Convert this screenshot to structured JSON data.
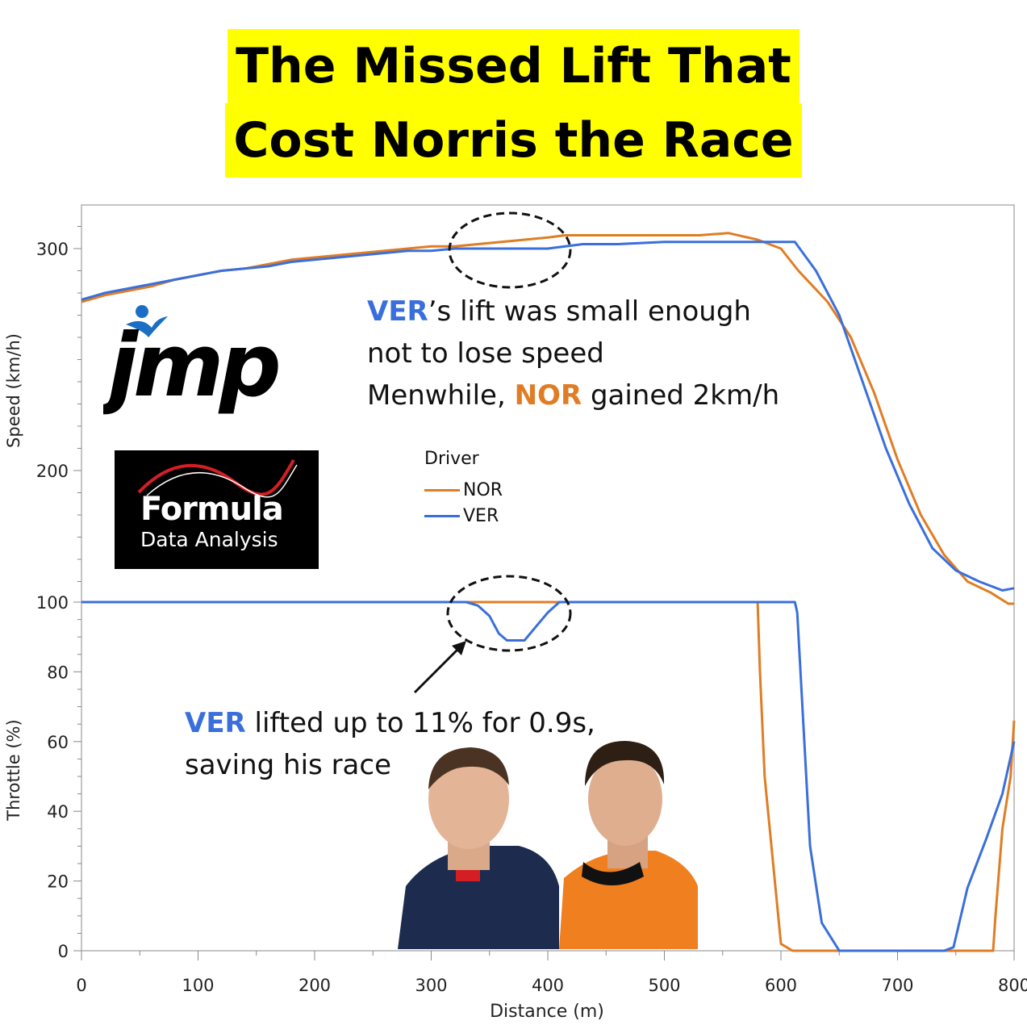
{
  "title": [
    "The Missed Lift That",
    "Cost Norris the Race"
  ],
  "colors": {
    "NOR": "#e07d24",
    "VER": "#3a6fdb",
    "title_bg": "#ffff00"
  },
  "annotations": {
    "top": {
      "line1_driver": "VER",
      "line1_rest": "’s lift was small enough",
      "line2": "not to lose speed",
      "line3_pre": "Menwhile, ",
      "line3_driver": "NOR",
      "line3_post": " gained 2km/h"
    },
    "bottom": {
      "line1_driver": "VER",
      "line1_rest": " lifted up to 11% for 0.9s,",
      "line2": "saving his race"
    }
  },
  "logos": {
    "jmp": "jmp",
    "fda_line1": "Formula",
    "fda_line2": "Data Analysis"
  },
  "legend": {
    "title": "Driver",
    "items": [
      "NOR",
      "VER"
    ]
  },
  "chart_data": [
    {
      "type": "line",
      "ylabel": "Speed (km/h)",
      "xlabel": "",
      "xlim": [
        0,
        800
      ],
      "ylim": [
        130,
        320
      ],
      "yticks": [
        200,
        300
      ],
      "series": [
        {
          "name": "NOR",
          "x": [
            0,
            20,
            40,
            60,
            80,
            100,
            120,
            140,
            160,
            180,
            200,
            220,
            240,
            260,
            280,
            300,
            320,
            340,
            360,
            380,
            400,
            415,
            430,
            460,
            500,
            530,
            555,
            580,
            600,
            615,
            640,
            660,
            680,
            700,
            720,
            740,
            760,
            780,
            795,
            800
          ],
          "y": [
            276,
            279,
            281,
            283,
            286,
            288,
            290,
            291,
            293,
            295,
            296,
            297,
            298,
            299,
            300,
            301,
            301,
            302,
            303,
            304,
            305,
            306,
            306,
            306,
            306,
            306,
            307,
            304,
            300,
            290,
            276,
            260,
            235,
            205,
            180,
            162,
            150,
            145,
            140,
            140
          ]
        },
        {
          "name": "VER",
          "x": [
            0,
            20,
            40,
            60,
            80,
            100,
            120,
            140,
            160,
            180,
            200,
            220,
            240,
            260,
            280,
            300,
            320,
            340,
            360,
            380,
            400,
            415,
            430,
            460,
            500,
            530,
            555,
            580,
            600,
            612,
            630,
            650,
            670,
            690,
            710,
            730,
            750,
            770,
            790,
            800
          ],
          "y": [
            277,
            280,
            282,
            284,
            286,
            288,
            290,
            291,
            292,
            294,
            295,
            296,
            297,
            298,
            299,
            299,
            300,
            300,
            300,
            300,
            300,
            301,
            302,
            302,
            303,
            303,
            303,
            303,
            303,
            303,
            290,
            270,
            240,
            210,
            185,
            165,
            155,
            150,
            146,
            147
          ]
        }
      ]
    },
    {
      "type": "line",
      "ylabel": "Throttle (%)",
      "xlabel": "Distance (m)",
      "xlim": [
        0,
        800
      ],
      "ylim": [
        0,
        100
      ],
      "xticks": [
        0,
        100,
        200,
        300,
        400,
        500,
        600,
        700,
        800
      ],
      "yticks": [
        0,
        20,
        40,
        60,
        80,
        100
      ],
      "series": [
        {
          "name": "NOR",
          "x": [
            0,
            580,
            582,
            586,
            600,
            610,
            640,
            700,
            740,
            782,
            784,
            790,
            797,
            800
          ],
          "y": [
            100,
            100,
            80,
            50,
            2,
            0,
            0,
            0,
            0,
            0,
            10,
            35,
            50,
            66
          ]
        },
        {
          "name": "VER",
          "x": [
            0,
            330,
            340,
            350,
            358,
            365,
            380,
            390,
            400,
            410,
            420,
            500,
            612,
            614,
            625,
            635,
            650,
            660,
            700,
            740,
            748,
            760,
            776,
            790,
            800
          ],
          "y": [
            100,
            100,
            99,
            96,
            91,
            89,
            89,
            93,
            97,
            100,
            100,
            100,
            100,
            97,
            30,
            8,
            0,
            0,
            0,
            0,
            1,
            18,
            32,
            45,
            60
          ]
        }
      ]
    }
  ]
}
